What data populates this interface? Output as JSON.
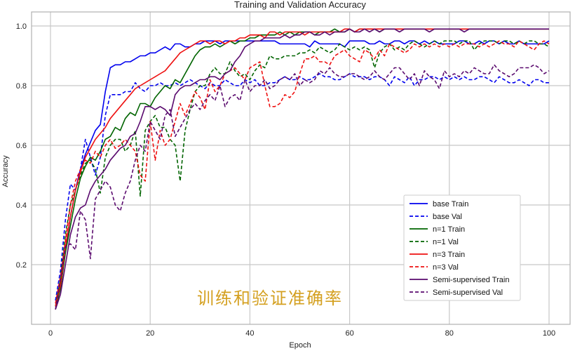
{
  "chart_data": {
    "type": "line",
    "title": "Training and Validation Accuracy",
    "xlabel": "Epoch",
    "ylabel": "Accuracy",
    "xlim": [
      -4,
      104
    ],
    "ylim": [
      0.0,
      1.05
    ],
    "xticks": [
      0,
      20,
      40,
      60,
      80,
      100
    ],
    "yticks": [
      0.2,
      0.4,
      0.6,
      0.8,
      1.0
    ],
    "ytick_labels": [
      "0.2",
      "0.4",
      "0.6",
      "0.8",
      "1.0"
    ],
    "grid": true,
    "legend_position": "lower right",
    "annotation": "训练和验证准确率",
    "x": [
      1,
      2,
      3,
      4,
      5,
      6,
      7,
      8,
      9,
      10,
      11,
      12,
      13,
      14,
      15,
      16,
      17,
      18,
      19,
      20,
      21,
      22,
      23,
      24,
      25,
      26,
      27,
      28,
      29,
      30,
      31,
      32,
      33,
      34,
      35,
      36,
      37,
      38,
      39,
      40,
      41,
      42,
      43,
      44,
      45,
      46,
      47,
      48,
      49,
      50,
      51,
      52,
      53,
      54,
      55,
      56,
      57,
      58,
      59,
      60,
      61,
      62,
      63,
      64,
      65,
      66,
      67,
      68,
      69,
      70,
      71,
      72,
      73,
      74,
      75,
      76,
      77,
      78,
      79,
      80,
      81,
      82,
      83,
      84,
      85,
      86,
      87,
      88,
      89,
      90,
      91,
      92,
      93,
      94,
      95,
      96,
      97,
      98,
      99,
      100
    ],
    "series": [
      {
        "name": "base Train",
        "color": "#0000ee",
        "dash": false,
        "values": [
          0.06,
          0.12,
          0.25,
          0.36,
          0.45,
          0.52,
          0.57,
          0.61,
          0.65,
          0.67,
          0.78,
          0.86,
          0.87,
          0.87,
          0.88,
          0.88,
          0.89,
          0.9,
          0.9,
          0.91,
          0.91,
          0.92,
          0.93,
          0.92,
          0.94,
          0.94,
          0.93,
          0.93,
          0.94,
          0.94,
          0.95,
          0.95,
          0.95,
          0.94,
          0.95,
          0.95,
          0.95,
          0.95,
          0.95,
          0.95,
          0.95,
          0.95,
          0.95,
          0.95,
          0.95,
          0.94,
          0.94,
          0.94,
          0.94,
          0.94,
          0.94,
          0.93,
          0.95,
          0.94,
          0.94,
          0.94,
          0.94,
          0.94,
          0.93,
          0.95,
          0.95,
          0.95,
          0.95,
          0.94,
          0.94,
          0.95,
          0.94,
          0.94,
          0.95,
          0.95,
          0.94,
          0.95,
          0.95,
          0.94,
          0.95,
          0.94,
          0.95,
          0.94,
          0.94,
          0.94,
          0.94,
          0.95,
          0.95,
          0.94,
          0.94,
          0.95,
          0.94,
          0.95,
          0.95,
          0.94,
          0.95,
          0.94,
          0.94,
          0.95,
          0.94,
          0.94,
          0.94,
          0.94,
          0.94,
          0.95
        ]
      },
      {
        "name": "base Val",
        "color": "#0000ee",
        "dash": true,
        "values": [
          0.08,
          0.18,
          0.35,
          0.47,
          0.45,
          0.52,
          0.62,
          0.56,
          0.5,
          0.56,
          0.7,
          0.77,
          0.77,
          0.77,
          0.78,
          0.78,
          0.81,
          0.79,
          0.78,
          0.8,
          0.8,
          0.81,
          0.8,
          0.8,
          0.81,
          0.8,
          0.81,
          0.82,
          0.81,
          0.8,
          0.79,
          0.81,
          0.8,
          0.8,
          0.82,
          0.81,
          0.8,
          0.8,
          0.82,
          0.81,
          0.82,
          0.8,
          0.8,
          0.81,
          0.81,
          0.82,
          0.83,
          0.82,
          0.82,
          0.83,
          0.82,
          0.82,
          0.83,
          0.84,
          0.83,
          0.83,
          0.82,
          0.82,
          0.83,
          0.84,
          0.83,
          0.83,
          0.83,
          0.82,
          0.83,
          0.83,
          0.82,
          0.8,
          0.83,
          0.82,
          0.81,
          0.83,
          0.8,
          0.82,
          0.82,
          0.83,
          0.83,
          0.82,
          0.83,
          0.82,
          0.83,
          0.82,
          0.83,
          0.82,
          0.82,
          0.83,
          0.83,
          0.82,
          0.81,
          0.83,
          0.82,
          0.81,
          0.81,
          0.82,
          0.81,
          0.8,
          0.82,
          0.82,
          0.81,
          0.81
        ]
      },
      {
        "name": "n=1 Train",
        "color": "#006400",
        "dash": false,
        "values": [
          0.05,
          0.12,
          0.24,
          0.33,
          0.42,
          0.49,
          0.53,
          0.56,
          0.55,
          0.58,
          0.62,
          0.63,
          0.66,
          0.65,
          0.69,
          0.71,
          0.7,
          0.74,
          0.74,
          0.73,
          0.76,
          0.78,
          0.8,
          0.79,
          0.82,
          0.81,
          0.84,
          0.87,
          0.9,
          0.92,
          0.93,
          0.93,
          0.94,
          0.93,
          0.94,
          0.95,
          0.94,
          0.95,
          0.95,
          0.96,
          0.96,
          0.97,
          0.97,
          0.97,
          0.97,
          0.98,
          0.97,
          0.98,
          0.97,
          0.98,
          0.98,
          0.98,
          0.97,
          0.98,
          0.98,
          0.98,
          0.99,
          0.98,
          0.98,
          0.99,
          0.98,
          0.99,
          0.99,
          0.99,
          0.99,
          0.98,
          0.99,
          0.99,
          0.99,
          0.99,
          0.99,
          0.99,
          0.99,
          0.99,
          0.99,
          0.99,
          0.99,
          0.99,
          0.99,
          0.99,
          0.99,
          0.99,
          0.99,
          0.99,
          0.99,
          0.99,
          0.99,
          0.99,
          0.99,
          0.99,
          0.99,
          0.99,
          0.99,
          0.99,
          0.99,
          0.99,
          0.99,
          0.99,
          0.99,
          0.99
        ]
      },
      {
        "name": "n=1 Val",
        "color": "#006400",
        "dash": true,
        "values": [
          0.06,
          0.15,
          0.3,
          0.4,
          0.45,
          0.5,
          0.54,
          0.55,
          0.52,
          0.44,
          0.56,
          0.6,
          0.62,
          0.62,
          0.58,
          0.6,
          0.65,
          0.43,
          0.65,
          0.68,
          0.7,
          0.66,
          0.66,
          0.62,
          0.6,
          0.48,
          0.65,
          0.72,
          0.78,
          0.8,
          0.8,
          0.84,
          0.86,
          0.84,
          0.84,
          0.88,
          0.85,
          0.83,
          0.84,
          0.82,
          0.85,
          0.87,
          0.86,
          0.9,
          0.89,
          0.89,
          0.9,
          0.9,
          0.9,
          0.91,
          0.91,
          0.92,
          0.91,
          0.93,
          0.92,
          0.91,
          0.92,
          0.94,
          0.93,
          0.92,
          0.93,
          0.92,
          0.93,
          0.92,
          0.86,
          0.91,
          0.93,
          0.94,
          0.92,
          0.93,
          0.92,
          0.94,
          0.95,
          0.94,
          0.93,
          0.94,
          0.95,
          0.94,
          0.95,
          0.95,
          0.95,
          0.94,
          0.95,
          0.95,
          0.92,
          0.94,
          0.95,
          0.95,
          0.95,
          0.94,
          0.95,
          0.95,
          0.94,
          0.95,
          0.94,
          0.95,
          0.95,
          0.94,
          0.94,
          0.93
        ]
      },
      {
        "name": "n=3 Train",
        "color": "#ee1111",
        "dash": false,
        "values": [
          0.06,
          0.13,
          0.26,
          0.36,
          0.45,
          0.51,
          0.56,
          0.59,
          0.62,
          0.64,
          0.66,
          0.69,
          0.71,
          0.73,
          0.75,
          0.77,
          0.79,
          0.8,
          0.81,
          0.82,
          0.83,
          0.84,
          0.85,
          0.87,
          0.89,
          0.91,
          0.92,
          0.93,
          0.94,
          0.95,
          0.95,
          0.94,
          0.95,
          0.95,
          0.94,
          0.95,
          0.95,
          0.96,
          0.96,
          0.97,
          0.97,
          0.97,
          0.96,
          0.98,
          0.98,
          0.97,
          0.98,
          0.98,
          0.98,
          0.98,
          0.97,
          0.98,
          0.98,
          0.98,
          0.98,
          0.98,
          0.98,
          0.98,
          0.99,
          0.99,
          0.98,
          0.99,
          0.99,
          0.99,
          0.99,
          0.99,
          0.99,
          0.99,
          0.99,
          0.99,
          0.99,
          0.99,
          0.99,
          0.99,
          0.99,
          0.99,
          0.99,
          0.99,
          0.99,
          0.99,
          0.99,
          0.99,
          0.99,
          0.99,
          0.99,
          0.99,
          0.99,
          0.99,
          0.99,
          0.99,
          0.99,
          0.99,
          0.99,
          0.99,
          0.99,
          0.99,
          0.99,
          0.99,
          0.99,
          0.99
        ]
      },
      {
        "name": "n=3 Val",
        "color": "#ee1111",
        "dash": true,
        "values": [
          0.07,
          0.16,
          0.28,
          0.4,
          0.48,
          0.52,
          0.55,
          0.54,
          0.58,
          0.56,
          0.6,
          0.62,
          0.59,
          0.6,
          0.62,
          0.6,
          0.58,
          0.5,
          0.48,
          0.68,
          0.55,
          0.65,
          0.6,
          0.62,
          0.68,
          0.74,
          0.7,
          0.74,
          0.78,
          0.76,
          0.72,
          0.82,
          0.78,
          0.8,
          0.84,
          0.85,
          0.86,
          0.84,
          0.82,
          0.86,
          0.87,
          0.88,
          0.8,
          0.73,
          0.73,
          0.74,
          0.77,
          0.76,
          0.78,
          0.84,
          0.89,
          0.89,
          0.9,
          0.88,
          0.88,
          0.87,
          0.9,
          0.91,
          0.92,
          0.9,
          0.89,
          0.88,
          0.92,
          0.91,
          0.89,
          0.92,
          0.9,
          0.94,
          0.93,
          0.92,
          0.91,
          0.92,
          0.94,
          0.93,
          0.94,
          0.93,
          0.94,
          0.93,
          0.94,
          0.93,
          0.94,
          0.93,
          0.94,
          0.94,
          0.94,
          0.93,
          0.94,
          0.93,
          0.94,
          0.95,
          0.94,
          0.94,
          0.93,
          0.95,
          0.94,
          0.93,
          0.92,
          0.94,
          0.95,
          0.94
        ]
      },
      {
        "name": "Semi-supervised Train",
        "color": "#5a0a6e",
        "dash": false,
        "values": [
          0.05,
          0.1,
          0.2,
          0.3,
          0.36,
          0.39,
          0.4,
          0.45,
          0.48,
          0.5,
          0.52,
          0.55,
          0.57,
          0.59,
          0.6,
          0.63,
          0.64,
          0.68,
          0.73,
          0.73,
          0.72,
          0.73,
          0.72,
          0.7,
          0.77,
          0.79,
          0.8,
          0.8,
          0.81,
          0.82,
          0.82,
          0.83,
          0.83,
          0.82,
          0.84,
          0.85,
          0.88,
          0.9,
          0.93,
          0.94,
          0.95,
          0.95,
          0.96,
          0.96,
          0.96,
          0.96,
          0.97,
          0.96,
          0.97,
          0.97,
          0.98,
          0.98,
          0.97,
          0.97,
          0.98,
          0.97,
          0.98,
          0.98,
          0.98,
          0.99,
          0.98,
          0.98,
          0.99,
          0.98,
          0.99,
          0.98,
          0.99,
          0.99,
          0.99,
          0.98,
          0.99,
          0.99,
          0.99,
          0.99,
          0.99,
          0.98,
          0.99,
          0.99,
          0.99,
          0.99,
          0.99,
          0.99,
          0.98,
          0.99,
          0.99,
          0.99,
          0.99,
          0.99,
          0.99,
          0.99,
          0.99,
          0.99,
          0.99,
          0.99,
          0.99,
          0.99,
          0.99,
          0.99,
          0.99,
          0.99
        ]
      },
      {
        "name": "Semi-supervised Val",
        "color": "#5a0a6e",
        "dash": true,
        "values": [
          0.05,
          0.15,
          0.26,
          0.27,
          0.25,
          0.38,
          0.35,
          0.22,
          0.42,
          0.45,
          0.48,
          0.46,
          0.4,
          0.38,
          0.44,
          0.48,
          0.55,
          0.6,
          0.58,
          0.68,
          0.65,
          0.62,
          0.7,
          0.72,
          0.63,
          0.66,
          0.69,
          0.72,
          0.74,
          0.72,
          0.75,
          0.77,
          0.75,
          0.8,
          0.73,
          0.76,
          0.77,
          0.75,
          0.82,
          0.78,
          0.8,
          0.8,
          0.82,
          0.79,
          0.8,
          0.82,
          0.83,
          0.82,
          0.84,
          0.8,
          0.82,
          0.81,
          0.82,
          0.85,
          0.84,
          0.86,
          0.84,
          0.83,
          0.83,
          0.84,
          0.84,
          0.83,
          0.82,
          0.83,
          0.85,
          0.83,
          0.82,
          0.84,
          0.86,
          0.86,
          0.84,
          0.82,
          0.84,
          0.8,
          0.85,
          0.83,
          0.82,
          0.79,
          0.85,
          0.83,
          0.84,
          0.83,
          0.85,
          0.84,
          0.86,
          0.85,
          0.84,
          0.84,
          0.87,
          0.85,
          0.84,
          0.83,
          0.84,
          0.86,
          0.86,
          0.86,
          0.87,
          0.86,
          0.84,
          0.85
        ]
      }
    ]
  }
}
